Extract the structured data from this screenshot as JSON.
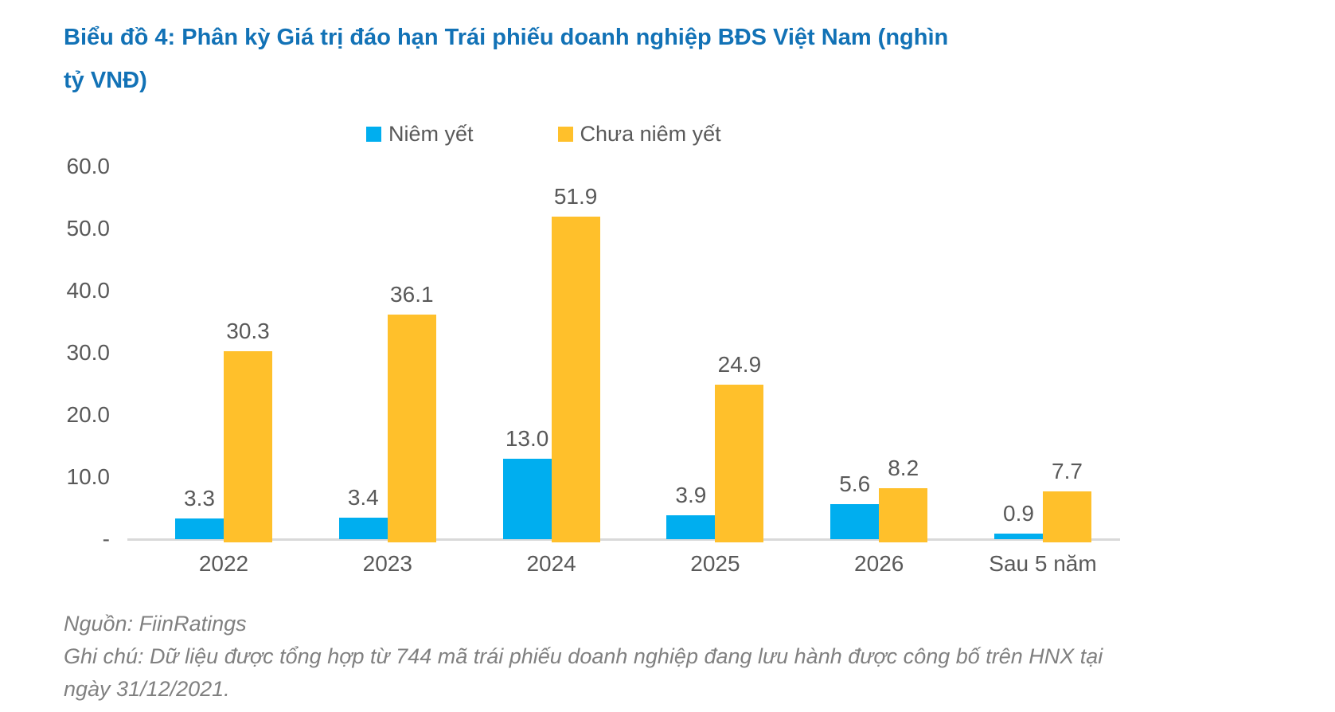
{
  "header": {
    "title_line1": "Biểu đồ 4: Phân kỳ Giá trị đáo hạn Trái phiếu doanh nghiệp BĐS Việt Nam (nghìn",
    "title_line2": "tỷ VNĐ)"
  },
  "chart_data": {
    "type": "bar",
    "title": "Biểu đồ 4: Phân kỳ Giá trị đáo hạn Trái phiếu doanh nghiệp BĐS Việt Nam (nghìn tỷ VNĐ)",
    "categories": [
      "2022",
      "2023",
      "2024",
      "2025",
      "2026",
      "Sau 5 năm"
    ],
    "series": [
      {
        "name": "Niêm yết",
        "color": "#00AEEF",
        "values": [
          3.3,
          3.4,
          13.0,
          3.9,
          5.6,
          0.9
        ]
      },
      {
        "name": "Chưa niêm yết",
        "color": "#FFC02B",
        "values": [
          30.3,
          36.1,
          51.9,
          24.9,
          8.2,
          7.7
        ]
      }
    ],
    "ylim": [
      0,
      60
    ],
    "yticks": [
      {
        "value": 60,
        "label": "60.0"
      },
      {
        "value": 50,
        "label": "50.0"
      },
      {
        "value": 40,
        "label": "40.0"
      },
      {
        "value": 30,
        "label": "30.0"
      },
      {
        "value": 20,
        "label": "20.0"
      },
      {
        "value": 10,
        "label": "10.0"
      },
      {
        "value": 0,
        "label": "-"
      }
    ],
    "grid": false,
    "legend_position": "top",
    "value_labels": true,
    "value_label_format": "one-decimal",
    "text_color": "#595959",
    "axis_color": "#D9D9D9",
    "title_color": "#1272B6"
  },
  "footer": {
    "source": "Nguồn: FiinRatings",
    "note_line1": "Ghi chú: Dữ liệu được tổng hợp từ 744 mã trái phiếu doanh nghiệp đang lưu hành được công bố trên HNX tại",
    "note_line2": "ngày 31/12/2021."
  }
}
